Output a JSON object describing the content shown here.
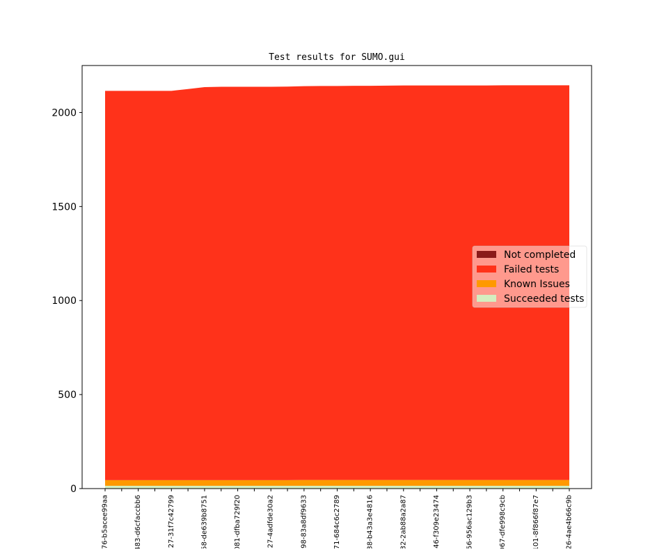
{
  "chart_data": {
    "type": "area",
    "stacked": true,
    "title": "Test results for SUMO.gui",
    "xlabel": "",
    "ylabel": "",
    "ylim": [
      0,
      2250
    ],
    "yticks": [
      0,
      500,
      1000,
      1500,
      2000
    ],
    "ytick_labels": [
      "0",
      "500",
      "1000",
      "1500",
      "2000"
    ],
    "categories": [
      "76-b5acee99aa",
      "",
      "483-d6cfaccbb6",
      "",
      "27-31f7c42799",
      "",
      "58-de639b8751",
      "",
      "081-dfba729f20",
      "",
      "27-4adfde30a2",
      "",
      "98-83a8df9633",
      "",
      "71-684c6c2789",
      "",
      "38-b43a3e4816",
      "",
      "32-2ab88a2a87",
      "",
      "46-f309e23474",
      "",
      "56-956ac129b3",
      "",
      "067-dfe998c9cb",
      "",
      "101-8f866f87e7",
      "",
      "26-4ae4b66c9b"
    ],
    "series": [
      {
        "name": "Succeeded tests",
        "color": "#d4eebf",
        "values": [
          15,
          15,
          15,
          15,
          15,
          15,
          15,
          15,
          15,
          15,
          15,
          15,
          15,
          15,
          15,
          15,
          15,
          15,
          15,
          15,
          15,
          15,
          15,
          15,
          15,
          15,
          15,
          15,
          15
        ]
      },
      {
        "name": "Known Issues",
        "color": "#ff9900",
        "values": [
          30,
          30,
          30,
          30,
          30,
          30,
          30,
          30,
          30,
          30,
          30,
          30,
          31,
          31,
          31,
          31,
          31,
          31,
          31,
          31,
          31,
          31,
          31,
          31,
          31,
          31,
          31,
          31,
          31
        ]
      },
      {
        "name": "Failed tests",
        "color": "#ff321a",
        "values": [
          2070,
          2070,
          2070,
          2070,
          2070,
          2080,
          2090,
          2092,
          2092,
          2092,
          2092,
          2093,
          2094,
          2095,
          2095,
          2096,
          2096,
          2097,
          2098,
          2098,
          2098,
          2098,
          2098,
          2098,
          2099,
          2099,
          2099,
          2099,
          2099
        ]
      },
      {
        "name": "Not completed",
        "color": "#8b1a1a",
        "values": [
          0,
          0,
          0,
          0,
          0,
          0,
          0,
          0,
          0,
          0,
          0,
          0,
          0,
          0,
          0,
          0,
          0,
          0,
          0,
          0,
          0,
          0,
          0,
          0,
          0,
          0,
          0,
          0,
          0
        ]
      }
    ],
    "legend": {
      "position": "center-right",
      "entries": [
        {
          "label": "Not completed",
          "color": "#8b1a1a"
        },
        {
          "label": "Failed tests",
          "color": "#ff321a"
        },
        {
          "label": "Known Issues",
          "color": "#ff9900"
        },
        {
          "label": "Succeeded tests",
          "color": "#d4eebf"
        }
      ]
    },
    "grid": false
  }
}
